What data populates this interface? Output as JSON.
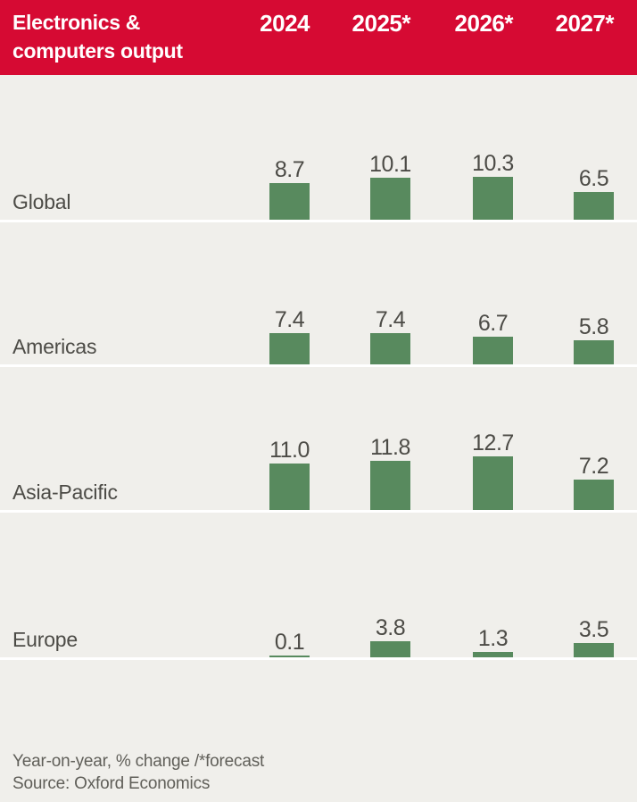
{
  "header": {
    "title_line1": "Electronics &",
    "title_line2": "computers output",
    "columns": [
      "2024",
      "2025*",
      "2026*",
      "2027*"
    ]
  },
  "chart_data": {
    "type": "bar",
    "title": "Electronics & computers output",
    "categories": [
      "2024",
      "2025*",
      "2026*",
      "2027*"
    ],
    "series": [
      {
        "name": "Global",
        "values": [
          8.7,
          10.1,
          10.3,
          6.5
        ]
      },
      {
        "name": "Americas",
        "values": [
          7.4,
          7.4,
          6.7,
          5.8
        ]
      },
      {
        "name": "Asia-Pacific",
        "values": [
          11.0,
          11.8,
          12.7,
          7.2
        ]
      },
      {
        "name": "Europe",
        "values": [
          0.1,
          3.8,
          1.3,
          3.5
        ]
      }
    ],
    "unit": "% change year-on-year",
    "value_labels": true,
    "value_format": "one_decimal",
    "note": "Year-on-year, % change /*forecast",
    "source": "Source: Oxford Economics",
    "layout": "four stacked region rows, one bar per year, shared value scale, bars sit on white baseline rules, values printed above bars",
    "grid": false,
    "legend": false
  },
  "footer": {
    "note": "Year-on-year, % change /*forecast",
    "source": "Source: Oxford Economics"
  },
  "colors": {
    "header_bg": "#d60a33",
    "header_text": "#ffffff",
    "bar": "#588a5e",
    "background": "#f0efeb",
    "text": "#4c4b46",
    "footer_text": "#605f59",
    "separator": "#ffffff"
  }
}
